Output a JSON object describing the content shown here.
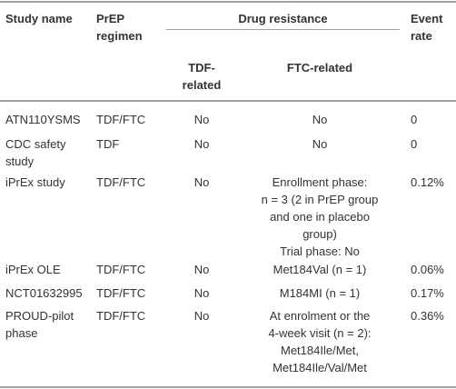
{
  "table": {
    "headers": {
      "study_name": "Study name",
      "prep_regimen": "PrEP regimen",
      "drug_resistance": "Drug resistance",
      "tdf_related": "TDF-related",
      "ftc_related": "FTC-related",
      "event_rate": "Event rate"
    },
    "rows": [
      [
        "ATN110YSMS",
        "TDF/FTC",
        "No",
        [
          "No"
        ],
        "0"
      ],
      [
        "CDC safety study",
        "TDF",
        "No",
        [
          "No"
        ],
        "0"
      ],
      [
        "iPrEx study",
        "TDF/FTC",
        "No",
        [
          "Enrollment phase:",
          "n = 3 (2 in PrEP group",
          "and one in placebo",
          "group)",
          "Trial phase: No"
        ],
        "0.12%"
      ],
      [
        "iPrEx OLE",
        "TDF/FTC",
        "No",
        [
          "Met184Val (n = 1)"
        ],
        "0.06%"
      ],
      [
        "NCT01632995",
        "TDF/FTC",
        "No",
        [
          "M184MI (n = 1)"
        ],
        "0.17%"
      ],
      [
        "PROUD-pilot phase",
        "TDF/FTC",
        "No",
        [
          "At enrolment or the",
          "4-week visit (n = 2):",
          "Met184Ile/Met,",
          "Met184Ile/Val/Met"
        ],
        "0.36%"
      ]
    ]
  }
}
